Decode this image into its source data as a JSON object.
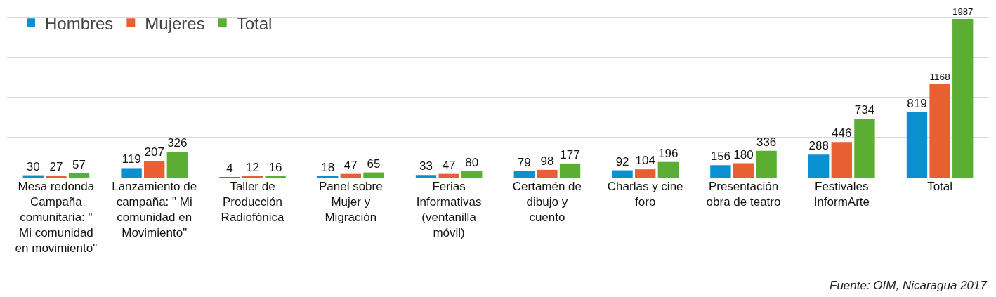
{
  "chart_data": {
    "type": "bar",
    "categories": [
      "Mesa redonda Campaña comunitaria: \" Mi comunidad en movimiento\"",
      "Lanzamiento de campaña: \" Mi comunidad en Movimiento\"",
      "Taller de Producción Radiofónica",
      "Panel sobre Mujer y Migración",
      "Ferias Informativas (ventanilla móvil)",
      "Certamén de dibujo y cuento",
      "Charlas y cine foro",
      "Presentación obra de teatro",
      "Festivales InformArte",
      "Total"
    ],
    "series": [
      {
        "name": "Hombres",
        "color": "#0a8fd1",
        "values": [
          30,
          119,
          4,
          18,
          33,
          79,
          92,
          156,
          288,
          819
        ]
      },
      {
        "name": "Mujeres",
        "color": "#e85f31",
        "values": [
          27,
          207,
          12,
          47,
          47,
          98,
          104,
          180,
          446,
          1168
        ]
      },
      {
        "name": "Total",
        "color": "#5aaf33",
        "values": [
          57,
          326,
          16,
          65,
          80,
          177,
          196,
          336,
          734,
          1987
        ]
      }
    ],
    "tick_labels": "x",
    "grid": "y",
    "legend": "top left",
    "data_labels": true,
    "annotations": [
      "Fuente: OIM, Nicaragua 2017"
    ]
  }
}
